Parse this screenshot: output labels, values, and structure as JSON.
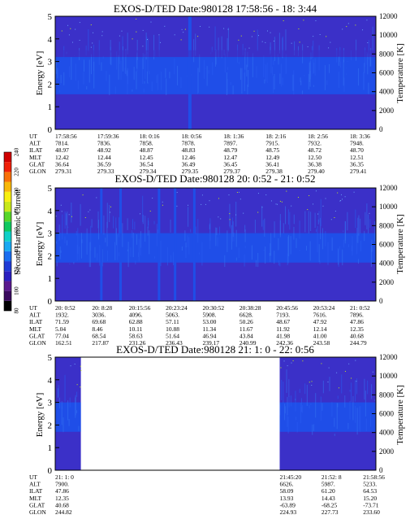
{
  "colorbar": {
    "label": "Second Harmonic Current",
    "ticks": [
      "80",
      "100",
      "120",
      "140",
      "160",
      "180",
      "200",
      "220",
      "240"
    ],
    "colors": [
      "#000000",
      "#3a0a5e",
      "#5a1a8e",
      "#2a1fc0",
      "#1f3bd6",
      "#1a6ef0",
      "#19a9f2",
      "#10d0c8",
      "#10c860",
      "#58d628",
      "#c8e81a",
      "#f8f010",
      "#f8b808",
      "#f87008",
      "#f02008",
      "#d00000"
    ]
  },
  "colors": {
    "background_fill": "#3b30c8",
    "mid_band": "#1f4ee8",
    "gap_fill": "#ffffff",
    "axis": "#000000"
  },
  "ephemeris_labels": [
    "UT",
    "ALT",
    "ILAT",
    "MLT",
    "GLAT",
    "GLON"
  ],
  "chart_data": [
    {
      "type": "heatmap",
      "title": "EXOS-D/TED   Date:980128  17:58:56 - 18: 3:44",
      "ylabel": "Energy [eV]",
      "y2label": "Temperature [K]",
      "ylim": [
        0,
        5
      ],
      "y2lim": [
        0,
        12000
      ],
      "yticks": [
        "0",
        "1",
        "2",
        "3",
        "4",
        "5"
      ],
      "y2ticks": [
        "0",
        "2000",
        "4000",
        "6000",
        "8000",
        "10000",
        "12000"
      ],
      "data_columns": [
        0,
        1
      ],
      "ephemeris": {
        "UT": [
          "17:58:56",
          "17:59:36",
          "18: 0:16",
          "18: 0:56",
          "18: 1:36",
          "18: 2:16",
          "18: 2:56",
          "18: 3:36"
        ],
        "ALT": [
          "7814.",
          "7836.",
          "7858.",
          "7878.",
          "7897.",
          "7915.",
          "7932.",
          "7948."
        ],
        "ILAT": [
          "48.97",
          "48.92",
          "48.87",
          "48.83",
          "48.79",
          "48.75",
          "48.72",
          "48.70"
        ],
        "MLT": [
          "12.42",
          "12.44",
          "12.45",
          "12.46",
          "12.47",
          "12.49",
          "12.50",
          "12.51"
        ],
        "GLAT": [
          "36.64",
          "36.59",
          "36.54",
          "36.49",
          "36.45",
          "36.41",
          "36.38",
          "36.35"
        ],
        "GLON": [
          "279.31",
          "279.33",
          "279.34",
          "279.35",
          "279.37",
          "279.38",
          "279.40",
          "279.41"
        ]
      }
    },
    {
      "type": "heatmap",
      "title": "EXOS-D/TED   Date:980128  20: 0:52 - 21: 0:52",
      "ylabel": "Energy [eV]",
      "y2label": "Temperature [K]",
      "ylim": [
        0,
        5
      ],
      "y2lim": [
        0,
        12000
      ],
      "yticks": [
        "0",
        "1",
        "2",
        "3",
        "4",
        "5"
      ],
      "y2ticks": [
        "0",
        "2000",
        "4000",
        "6000",
        "8000",
        "10000",
        "12000"
      ],
      "data_columns": [
        0,
        1
      ],
      "ephemeris": {
        "UT": [
          "20: 0:52",
          "20: 8:28",
          "20:15:56",
          "20:23:24",
          "20:30:52",
          "20:38:28",
          "20:45:56",
          "20:53:24",
          "21: 0:52"
        ],
        "ALT": [
          "1932.",
          "3036.",
          "4096.",
          "5063.",
          "5908.",
          "6628.",
          "7193.",
          "7616.",
          "7896."
        ],
        "ILAT": [
          "71.59",
          "69.68",
          "62.88",
          "57.11",
          "53.00",
          "50.26",
          "48.67",
          "47.92",
          "47.86"
        ],
        "MLT": [
          "5.04",
          "8.46",
          "10.11",
          "10.88",
          "11.34",
          "11.67",
          "11.92",
          "12.14",
          "12.35"
        ],
        "GLAT": [
          "77.04",
          "68.54",
          "58.63",
          "51.64",
          "46.94",
          "43.84",
          "41.98",
          "41.00",
          "40.68"
        ],
        "GLON": [
          "162.51",
          "217.87",
          "231.26",
          "236.43",
          "239.17",
          "240.99",
          "242.36",
          "243.58",
          "244.79"
        ]
      }
    },
    {
      "type": "heatmap",
      "title": "EXOS-D/TED   Date:980128  21: 1: 0 - 22: 0:56",
      "ylabel": "Energy [eV]",
      "y2label": "Temperature [K]",
      "ylim": [
        0,
        5
      ],
      "y2lim": [
        0,
        12000
      ],
      "yticks": [
        "0",
        "1",
        "2",
        "3",
        "4",
        "5"
      ],
      "y2ticks": [
        "0",
        "2000",
        "4000",
        "6000",
        "8000",
        "10000",
        "12000"
      ],
      "data_columns": [
        [
          0,
          0.08
        ],
        [
          0.7,
          1
        ]
      ],
      "ephemeris_left": {
        "UT": [
          "21: 1: 0"
        ],
        "ALT": [
          "7900."
        ],
        "ILAT": [
          "47.86"
        ],
        "MLT": [
          "12.35"
        ],
        "GLAT": [
          "40.68"
        ],
        "GLON": [
          "244.82"
        ]
      },
      "ephemeris_right": {
        "UT": [
          "21:45:20",
          "21:52: 8",
          "21:58:56"
        ],
        "ALT": [
          "6626.",
          "5987.",
          "5233."
        ],
        "ILAT": [
          "58.09",
          "61.20",
          "64.53"
        ],
        "MLT": [
          "13.93",
          "14.43",
          "15.20"
        ],
        "GLAT": [
          "-63.89",
          "-68.25",
          "-73.71"
        ],
        "GLON": [
          "224.93",
          "227.73",
          "233.60"
        ]
      }
    }
  ]
}
